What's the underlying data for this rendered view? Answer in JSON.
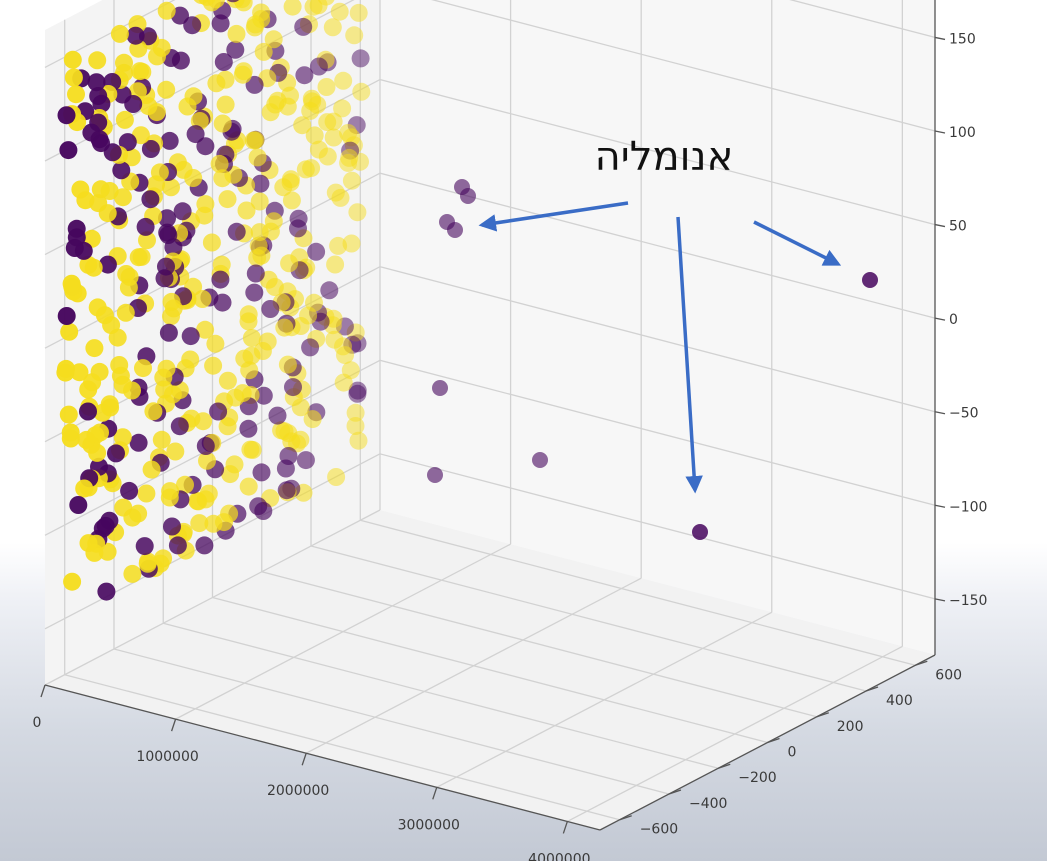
{
  "chart_data": {
    "type": "scatter",
    "projection": "3d",
    "colormap": "viridis (two classes)",
    "class_colors": {
      "normal": "#f5dd1e",
      "anomaly": "#46065e"
    },
    "arrow_color": "#3a6cc6",
    "grid": true,
    "annotation": "אנומליה",
    "x_ticks": [
      "0",
      "1000000",
      "2000000",
      "3000000",
      "4000000"
    ],
    "y_ticks": [
      "−600",
      "−400",
      "−200",
      "0",
      "200",
      "400",
      "600"
    ],
    "z_ticks": [
      "150",
      "100",
      "50",
      "0",
      "−50",
      "−100",
      "−150"
    ],
    "x_range": [
      0,
      4000000
    ],
    "y_range": [
      -600,
      600
    ],
    "z_range": [
      -150,
      150
    ],
    "anomalies": [
      {
        "x": 600000,
        "y": -500,
        "z": 70
      },
      {
        "x": 3900000,
        "y": 650,
        "z": 60
      },
      {
        "x": 3000000,
        "y": -30,
        "z": -150
      },
      {
        "x": 1500000,
        "y": -80,
        "z": -100
      }
    ],
    "cluster": {
      "description": "dense cluster of points",
      "x_range": [
        0,
        20000
      ],
      "y_range": [
        -600,
        600
      ],
      "z_range": [
        -150,
        150
      ]
    }
  }
}
